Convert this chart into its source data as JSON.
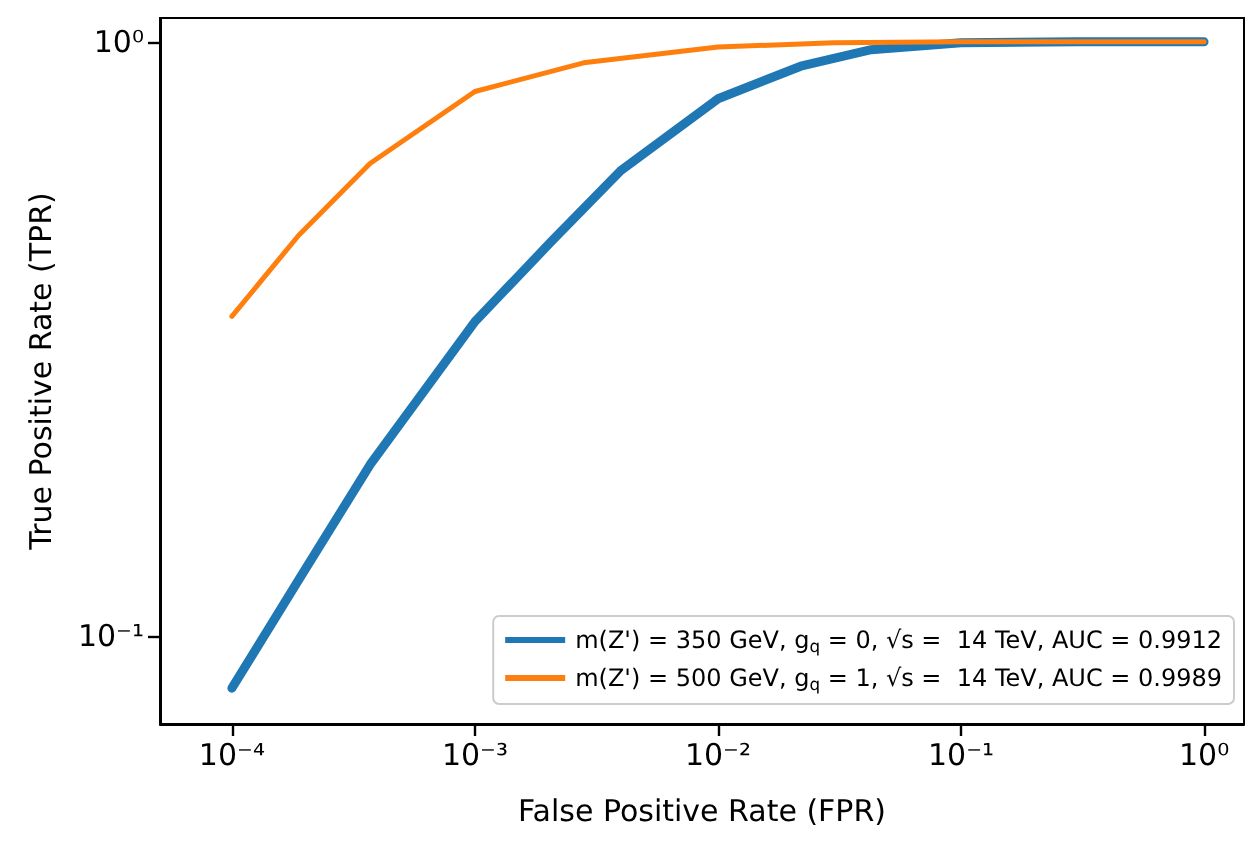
{
  "chart_data": {
    "type": "line",
    "xlabel": "False Positive Rate (FPR)",
    "ylabel": "True Positive Rate (TPR)",
    "log": "xy",
    "grid": false,
    "legend": "bottom right",
    "marker": "none",
    "line_style": "solid",
    "xlim": [
      5.06e-05,
      1.46
    ],
    "ylim": [
      0.071,
      1.097
    ],
    "xticks": [
      {
        "value": 0.0001,
        "label": "10⁻⁴"
      },
      {
        "value": 0.001,
        "label": "10⁻³"
      },
      {
        "value": 0.01,
        "label": "10⁻²"
      },
      {
        "value": 0.1,
        "label": "10⁻¹"
      },
      {
        "value": 1,
        "label": "10⁰"
      }
    ],
    "yticks": [
      {
        "value": 0.1,
        "label": "10⁻¹"
      },
      {
        "value": 1,
        "label": "10⁰"
      }
    ],
    "series": [
      {
        "name": "m(Z') = 350 GeV, g$_{q}$ = 0, √s =  14 TeV, AUC = 0.9912",
        "color": "#1f77b4",
        "x": [
          0.0001,
          0.000188,
          0.00037,
          0.001,
          0.00204,
          0.00398,
          0.01,
          0.0219,
          0.0427,
          0.1,
          0.3,
          1
        ],
        "values": [
          0.0816,
          0.124,
          0.194,
          0.338,
          0.459,
          0.607,
          0.802,
          0.91,
          0.97,
          0.997,
          1.0,
          1.0
        ]
      },
      {
        "name": "m(Z') = 500 GeV, g$_{q}$ = 1, √s =  14 TeV, AUC = 0.9989",
        "color": "#ff7f0e",
        "x": [
          0.0001,
          0.000188,
          0.00037,
          0.001,
          0.0028,
          0.01,
          0.03,
          0.1,
          0.3,
          1
        ],
        "values": [
          0.345,
          0.472,
          0.624,
          0.825,
          0.922,
          0.98,
          0.997,
          1.0,
          1.0,
          1.0
        ]
      }
    ]
  }
}
